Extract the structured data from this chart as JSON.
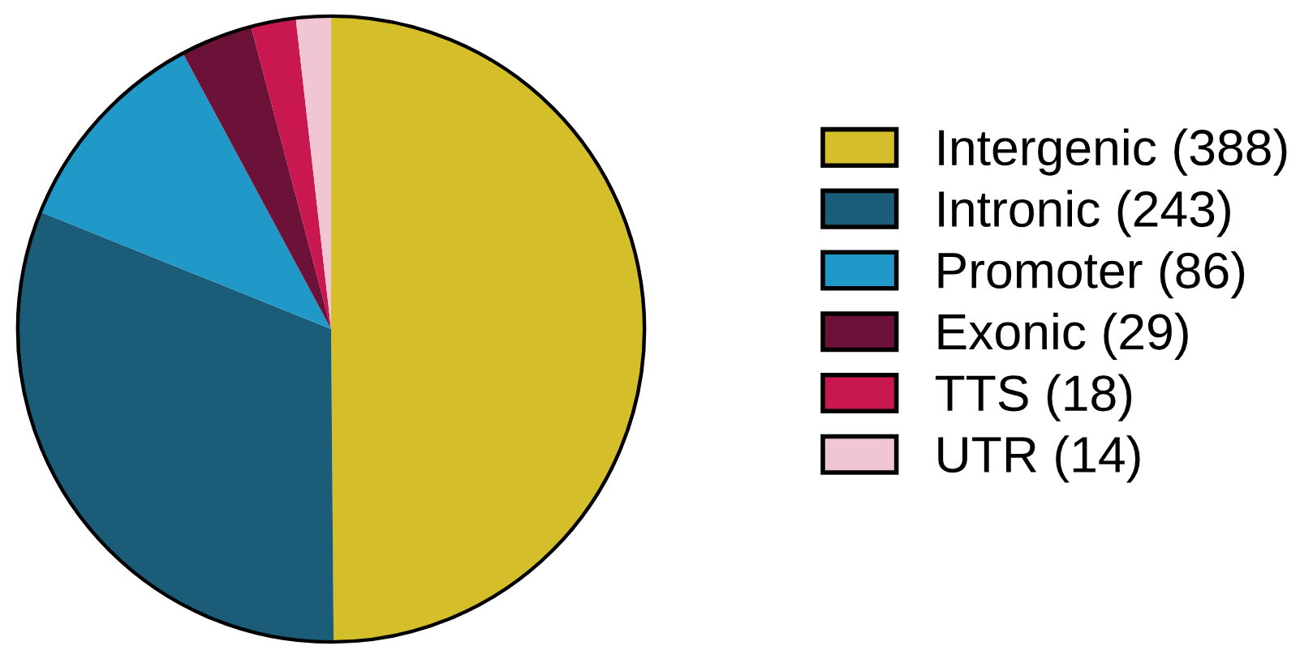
{
  "chart_data": {
    "type": "pie",
    "categories": [
      "Intergenic (388)",
      "Intronic (243)",
      "Promoter (86)",
      "Exonic (29)",
      "TTS (18)",
      "UTR (14)"
    ],
    "values": [
      388,
      243,
      86,
      29,
      18,
      14
    ],
    "colors": [
      "#d4bf2a",
      "#1b5d78",
      "#2098c8",
      "#6c1238",
      "#c8184f",
      "#f0c6d3"
    ],
    "legend": "right"
  }
}
